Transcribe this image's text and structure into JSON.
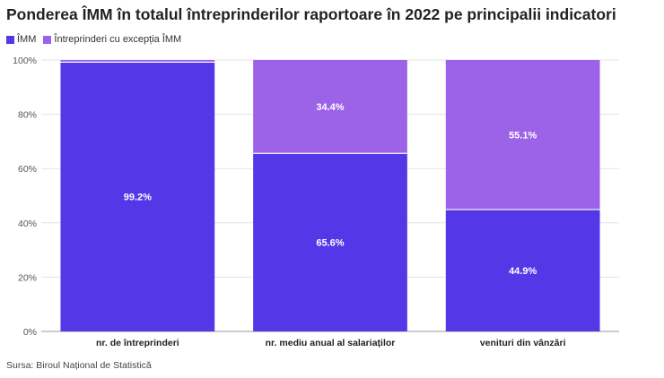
{
  "chart_data": {
    "type": "bar",
    "stacked": true,
    "title": "Ponderea ÎMM în totalul întreprinderilor raportoare în 2022 pe principalii indicatori",
    "categories": [
      "nr. de întreprinderi",
      "nr. mediu anual al salariaților",
      "venituri din vânzări"
    ],
    "series": [
      {
        "name": "ÎMM",
        "color": "#5438e8",
        "values": [
          99.2,
          65.6,
          44.9
        ],
        "labels": [
          "99.2%",
          "65.6%",
          "44.9%"
        ]
      },
      {
        "name": "Întreprinderi cu excepția ÎMM",
        "color": "#9c63e8",
        "values": [
          0.8,
          34.4,
          55.1
        ],
        "labels": [
          "",
          "34.4%",
          "55.1%"
        ]
      }
    ],
    "ylim": [
      0,
      100
    ],
    "yticks": [
      "0%",
      "20%",
      "40%",
      "60%",
      "80%",
      "100%"
    ],
    "xlabel": "",
    "ylabel": "",
    "grid": true,
    "legend_position": "top-left"
  },
  "source": "Sursa: Biroul Național de Statistică"
}
